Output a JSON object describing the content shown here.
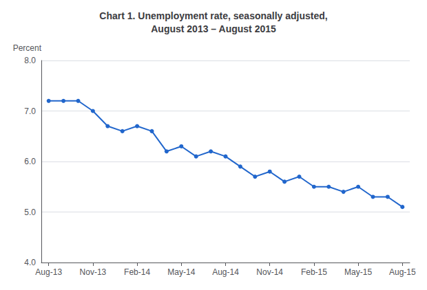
{
  "chart_data": {
    "type": "line",
    "title": "Chart 1. Unemployment rate, seasonally adjusted,\nAugust 2013 – August 2015",
    "ylabel": "Percent",
    "categories": [
      "Aug-13",
      null,
      null,
      "Nov-13",
      null,
      null,
      "Feb-14",
      null,
      null,
      "May-14",
      null,
      null,
      "Aug-14",
      null,
      null,
      "Nov-14",
      null,
      null,
      "Feb-15",
      null,
      null,
      "May-15",
      null,
      null,
      "Aug-15"
    ],
    "values": [
      7.2,
      7.2,
      7.2,
      7.0,
      6.7,
      6.6,
      6.7,
      6.6,
      6.2,
      6.3,
      6.1,
      6.2,
      6.1,
      5.9,
      5.7,
      5.8,
      5.6,
      5.7,
      5.5,
      5.5,
      5.4,
      5.5,
      5.3,
      5.3,
      5.1
    ],
    "color": "#2166CC",
    "marker": "circle",
    "ylim": [
      4.0,
      8.0
    ],
    "yticks": [
      {
        "value": 4.0,
        "label": "4.0"
      },
      {
        "value": 5.0,
        "label": "5.0"
      },
      {
        "value": 6.0,
        "label": "6.0"
      },
      {
        "value": 7.0,
        "label": "7.0"
      },
      {
        "value": 8.0,
        "label": "8.0"
      }
    ],
    "grid": true
  }
}
